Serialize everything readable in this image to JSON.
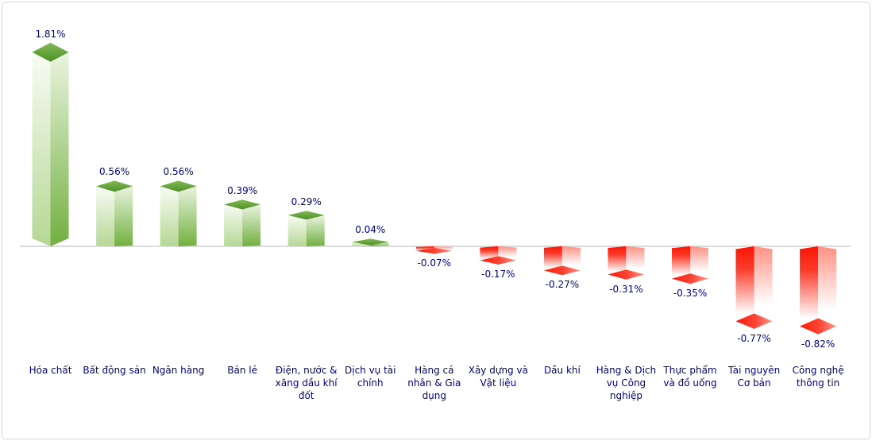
{
  "chart_data": {
    "type": "bar",
    "variant": "3d-columns",
    "title": "",
    "subtitle": "",
    "xlabel": "",
    "ylabel": "",
    "unit": "%",
    "ylim": [
      -1.0,
      2.0
    ],
    "grid": false,
    "legend": "none",
    "baseline_value": 0,
    "categories": [
      "Hóa chất",
      "Bất động sản",
      "Ngân hàng",
      "Bán lẻ",
      "Điện, nước & xăng dầu khí đốt",
      "Dịch vụ tài chính",
      "Hàng cá nhân & Gia dụng",
      "Xây dựng và Vật liệu",
      "Dầu khí",
      "Hàng & Dịch vụ Công nghiệp",
      "Thực phẩm và đồ uống",
      "Tài nguyên Cơ bản",
      "Công nghệ thông tin"
    ],
    "categories_display": [
      "Hóa chất",
      "Bất động sản",
      "Ngân hàng",
      "Bán lẻ",
      "Điện, nước &\nxăng dầu khí\nđốt",
      "Dịch vụ tài\nchính",
      "Hàng cá\nnhân & Gia\ndụng",
      "Xây dựng và\nVật liệu",
      "Dầu khí",
      "Hàng & Dịch\nvụ Công\nnghiệp",
      "Thực phẩm\nvà đồ uống",
      "Tài nguyên\nCơ bản",
      "Công nghệ\nthông tin"
    ],
    "values": [
      1.81,
      0.56,
      0.56,
      0.39,
      0.29,
      0.04,
      -0.07,
      -0.17,
      -0.27,
      -0.31,
      -0.35,
      -0.77,
      -0.82
    ],
    "value_labels": [
      "1.81%",
      "0.56%",
      "0.56%",
      "0.39%",
      "0.29%",
      "0.04%",
      "-0.07%",
      "-0.17%",
      "-0.27%",
      "-0.31%",
      "-0.35%",
      "-0.77%",
      "-0.82%"
    ],
    "colors": {
      "positive_cap": [
        "#83ba57",
        "#4e8f26"
      ],
      "positive_face_left": [
        "#f8fcf4",
        "#b6d795"
      ],
      "positive_face_right": [
        "#eaf4df",
        "#72af40"
      ],
      "negative_cap": [
        "#fc1808",
        "#fd4737",
        "#ff9488"
      ],
      "negative_face_left": [
        "#fa1505",
        "#fb3b2b",
        "#ffffff"
      ],
      "negative_face_right": [
        "#ff9185",
        "#ffffff"
      ],
      "label_text": "#00008b",
      "axis_line": "#cfcfcf",
      "frame_border": "#d6d6d6",
      "background": "#ffffff"
    }
  }
}
